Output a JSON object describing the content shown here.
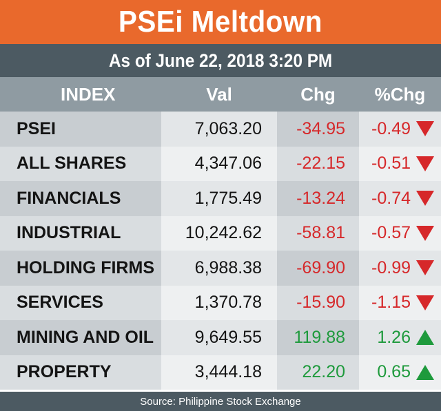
{
  "title": "PSEi Meltdown",
  "subtitle": "As of June 22, 2018 3:20 PM",
  "headers": {
    "index": "INDEX",
    "val": "Val",
    "chg": "Chg",
    "pct": "%Chg"
  },
  "rows": [
    {
      "name": "PSEI",
      "val": "7,063.20",
      "chg": "-34.95",
      "pct": "-0.49",
      "dir": "down"
    },
    {
      "name": "ALL SHARES",
      "val": "4,347.06",
      "chg": "-22.15",
      "pct": "-0.51",
      "dir": "down"
    },
    {
      "name": "FINANCIALS",
      "val": "1,775.49",
      "chg": "-13.24",
      "pct": "-0.74",
      "dir": "down"
    },
    {
      "name": "INDUSTRIAL",
      "val": "10,242.62",
      "chg": "-58.81",
      "pct": "-0.57",
      "dir": "down"
    },
    {
      "name": "HOLDING FIRMS",
      "val": "6,988.38",
      "chg": "-69.90",
      "pct": "-0.99",
      "dir": "down"
    },
    {
      "name": "SERVICES",
      "val": "1,370.78",
      "chg": "-15.90",
      "pct": "-1.15",
      "dir": "down"
    },
    {
      "name": "MINING AND OIL",
      "val": "9,649.55",
      "chg": "119.88",
      "pct": "1.26",
      "dir": "up"
    },
    {
      "name": "PROPERTY",
      "val": "3,444.18",
      "chg": "22.20",
      "pct": "0.65",
      "dir": "up"
    }
  ],
  "source": "Source: Philippine Stock Exchange",
  "colors": {
    "accent": "#e9692c",
    "bar": "#4c5a62",
    "header": "#8f9ba2",
    "negative": "#d6282a",
    "positive": "#1e9a3c"
  },
  "icons": {
    "down": "down-triangle-icon",
    "up": "up-triangle-icon"
  }
}
